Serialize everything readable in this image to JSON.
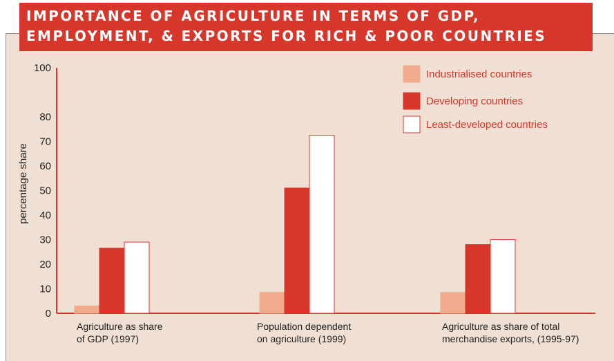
{
  "title_lines": [
    "IMPORTANCE OF AGRICULTURE IN TERMS OF GDP,",
    "EMPLOYMENT, & EXPORTS FOR RICH & POOR COUNTRIES"
  ],
  "colors": {
    "accent": "#d7362b",
    "industrialised": "#f2aa8c",
    "developing": "#d7362b",
    "least_developed": "#ffffff",
    "panel": "#f0dfd3"
  },
  "chart_data": {
    "type": "bar",
    "title": "IMPORTANCE OF AGRICULTURE IN TERMS OF GDP, EMPLOYMENT, & EXPORTS FOR RICH & POOR COUNTRIES",
    "ylabel": "percentage share",
    "ylim": [
      0,
      100
    ],
    "yticks": [
      0,
      10,
      20,
      30,
      40,
      50,
      60,
      70,
      80,
      100
    ],
    "categories": [
      [
        "Agriculture as share",
        "of GDP (1997)"
      ],
      [
        "Population dependent",
        "on agriculture (1999)"
      ],
      [
        "Agriculture as share of total",
        "merchandise exports, (1995-97)"
      ]
    ],
    "series": [
      {
        "name": "Industrialised countries",
        "values": [
          3,
          8.5,
          8.5
        ]
      },
      {
        "name": "Developing countries",
        "values": [
          26.5,
          51,
          28
        ]
      },
      {
        "name": "Least-developed countries",
        "values": [
          29,
          72.5,
          30
        ]
      }
    ],
    "legend_placement": "top-right",
    "grid": false
  }
}
